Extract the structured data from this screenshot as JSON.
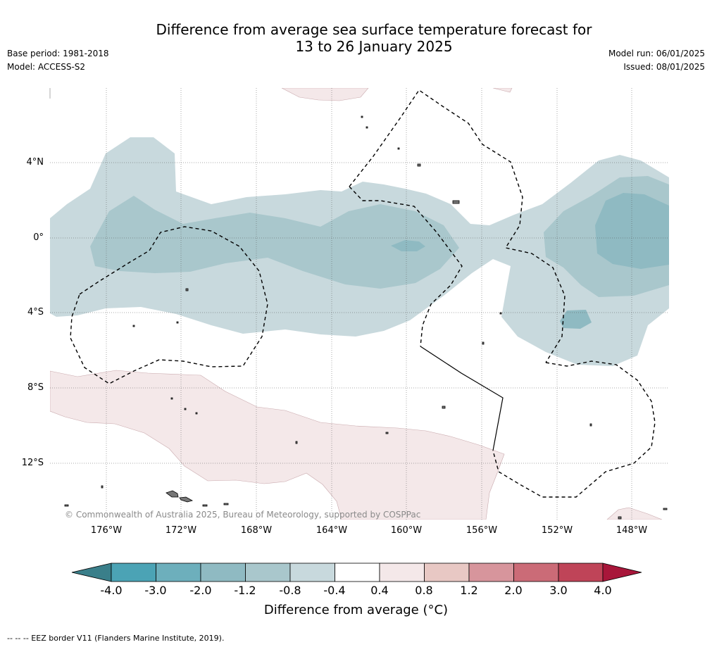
{
  "header": {
    "title_line1": "Difference from average sea surface temperature forecast for",
    "title_line2": "13 to 26 January 2025",
    "base_period": "Base period: 1981-2018",
    "model": "Model: ACCESS-S2",
    "model_run": "Model run: 06/01/2025",
    "issued": "Issued: 08/01/2025"
  },
  "map": {
    "lat_labels": [
      "4°N",
      "0°",
      "4°S",
      "8°S",
      "12°S"
    ],
    "lon_labels": [
      "176°W",
      "172°W",
      "168°W",
      "164°W",
      "160°W",
      "156°W",
      "152°W",
      "148°W"
    ],
    "copyright": "© Commonwealth of Australia 2025, Bureau of Meteorology, supported by COSPPac"
  },
  "colorbar": {
    "title": "Difference from average (°C)",
    "tick_labels": [
      "-4.0",
      "-3.0",
      "-2.0",
      "-1.2",
      "-0.8",
      "-0.4",
      "0.4",
      "0.8",
      "1.2",
      "2.0",
      "3.0",
      "4.0"
    ],
    "colors": [
      "#3a7f8a",
      "#4ba3b5",
      "#6dafbc",
      "#8fbac2",
      "#a9c7cc",
      "#c8d9dd",
      "#ffffff",
      "#f4e8e9",
      "#e8c8c4",
      "#d7959c",
      "#cb6b77",
      "#bf4458",
      "#a8163a"
    ]
  },
  "footnote": "--  --  -- EEZ border V11 (Flanders Marine Institute, 2019)."
}
